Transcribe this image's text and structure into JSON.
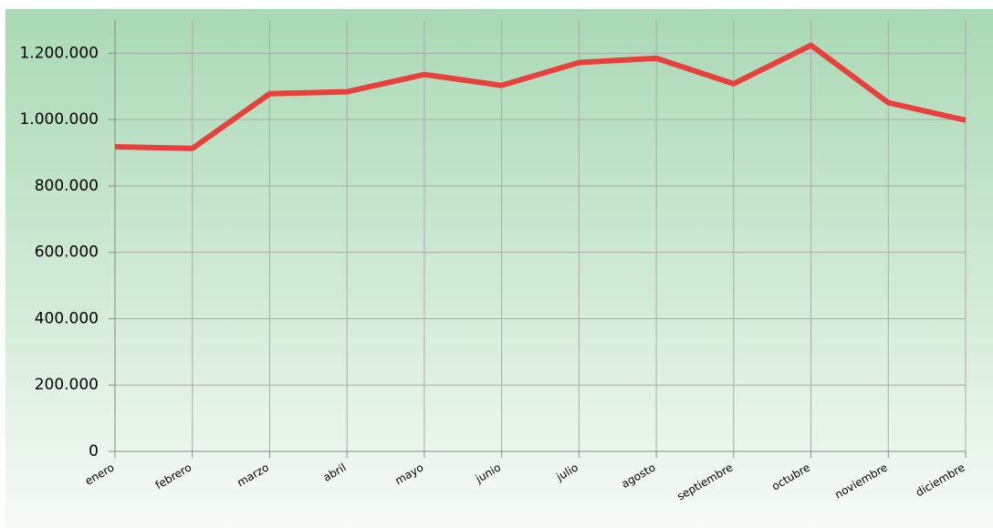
{
  "chart_data": {
    "type": "line",
    "categories": [
      "enero",
      "febrero",
      "marzo",
      "abril",
      "mayo",
      "junio",
      "julio",
      "agosto",
      "septiembre",
      "octubre",
      "noviembre",
      "diciembre"
    ],
    "series": [
      {
        "name": null,
        "color": "#e8403c",
        "values": [
          918000,
          913000,
          1078000,
          1084000,
          1136000,
          1103000,
          1172000,
          1185000,
          1108000,
          1224000,
          1051000,
          998000
        ]
      }
    ],
    "ylim": [
      0,
      1300000
    ],
    "yticks": [
      0,
      {
        "value": 200000,
        "label": "200.000"
      },
      {
        "value": 400000,
        "label": "400.000"
      },
      {
        "value": 600000,
        "label": "600.000"
      },
      {
        "value": 800000,
        "label": "800.000"
      },
      {
        "value": 1000000,
        "label": "1.000.000"
      },
      {
        "value": 1200000,
        "label": "1.200.000"
      }
    ],
    "grid": true
  }
}
